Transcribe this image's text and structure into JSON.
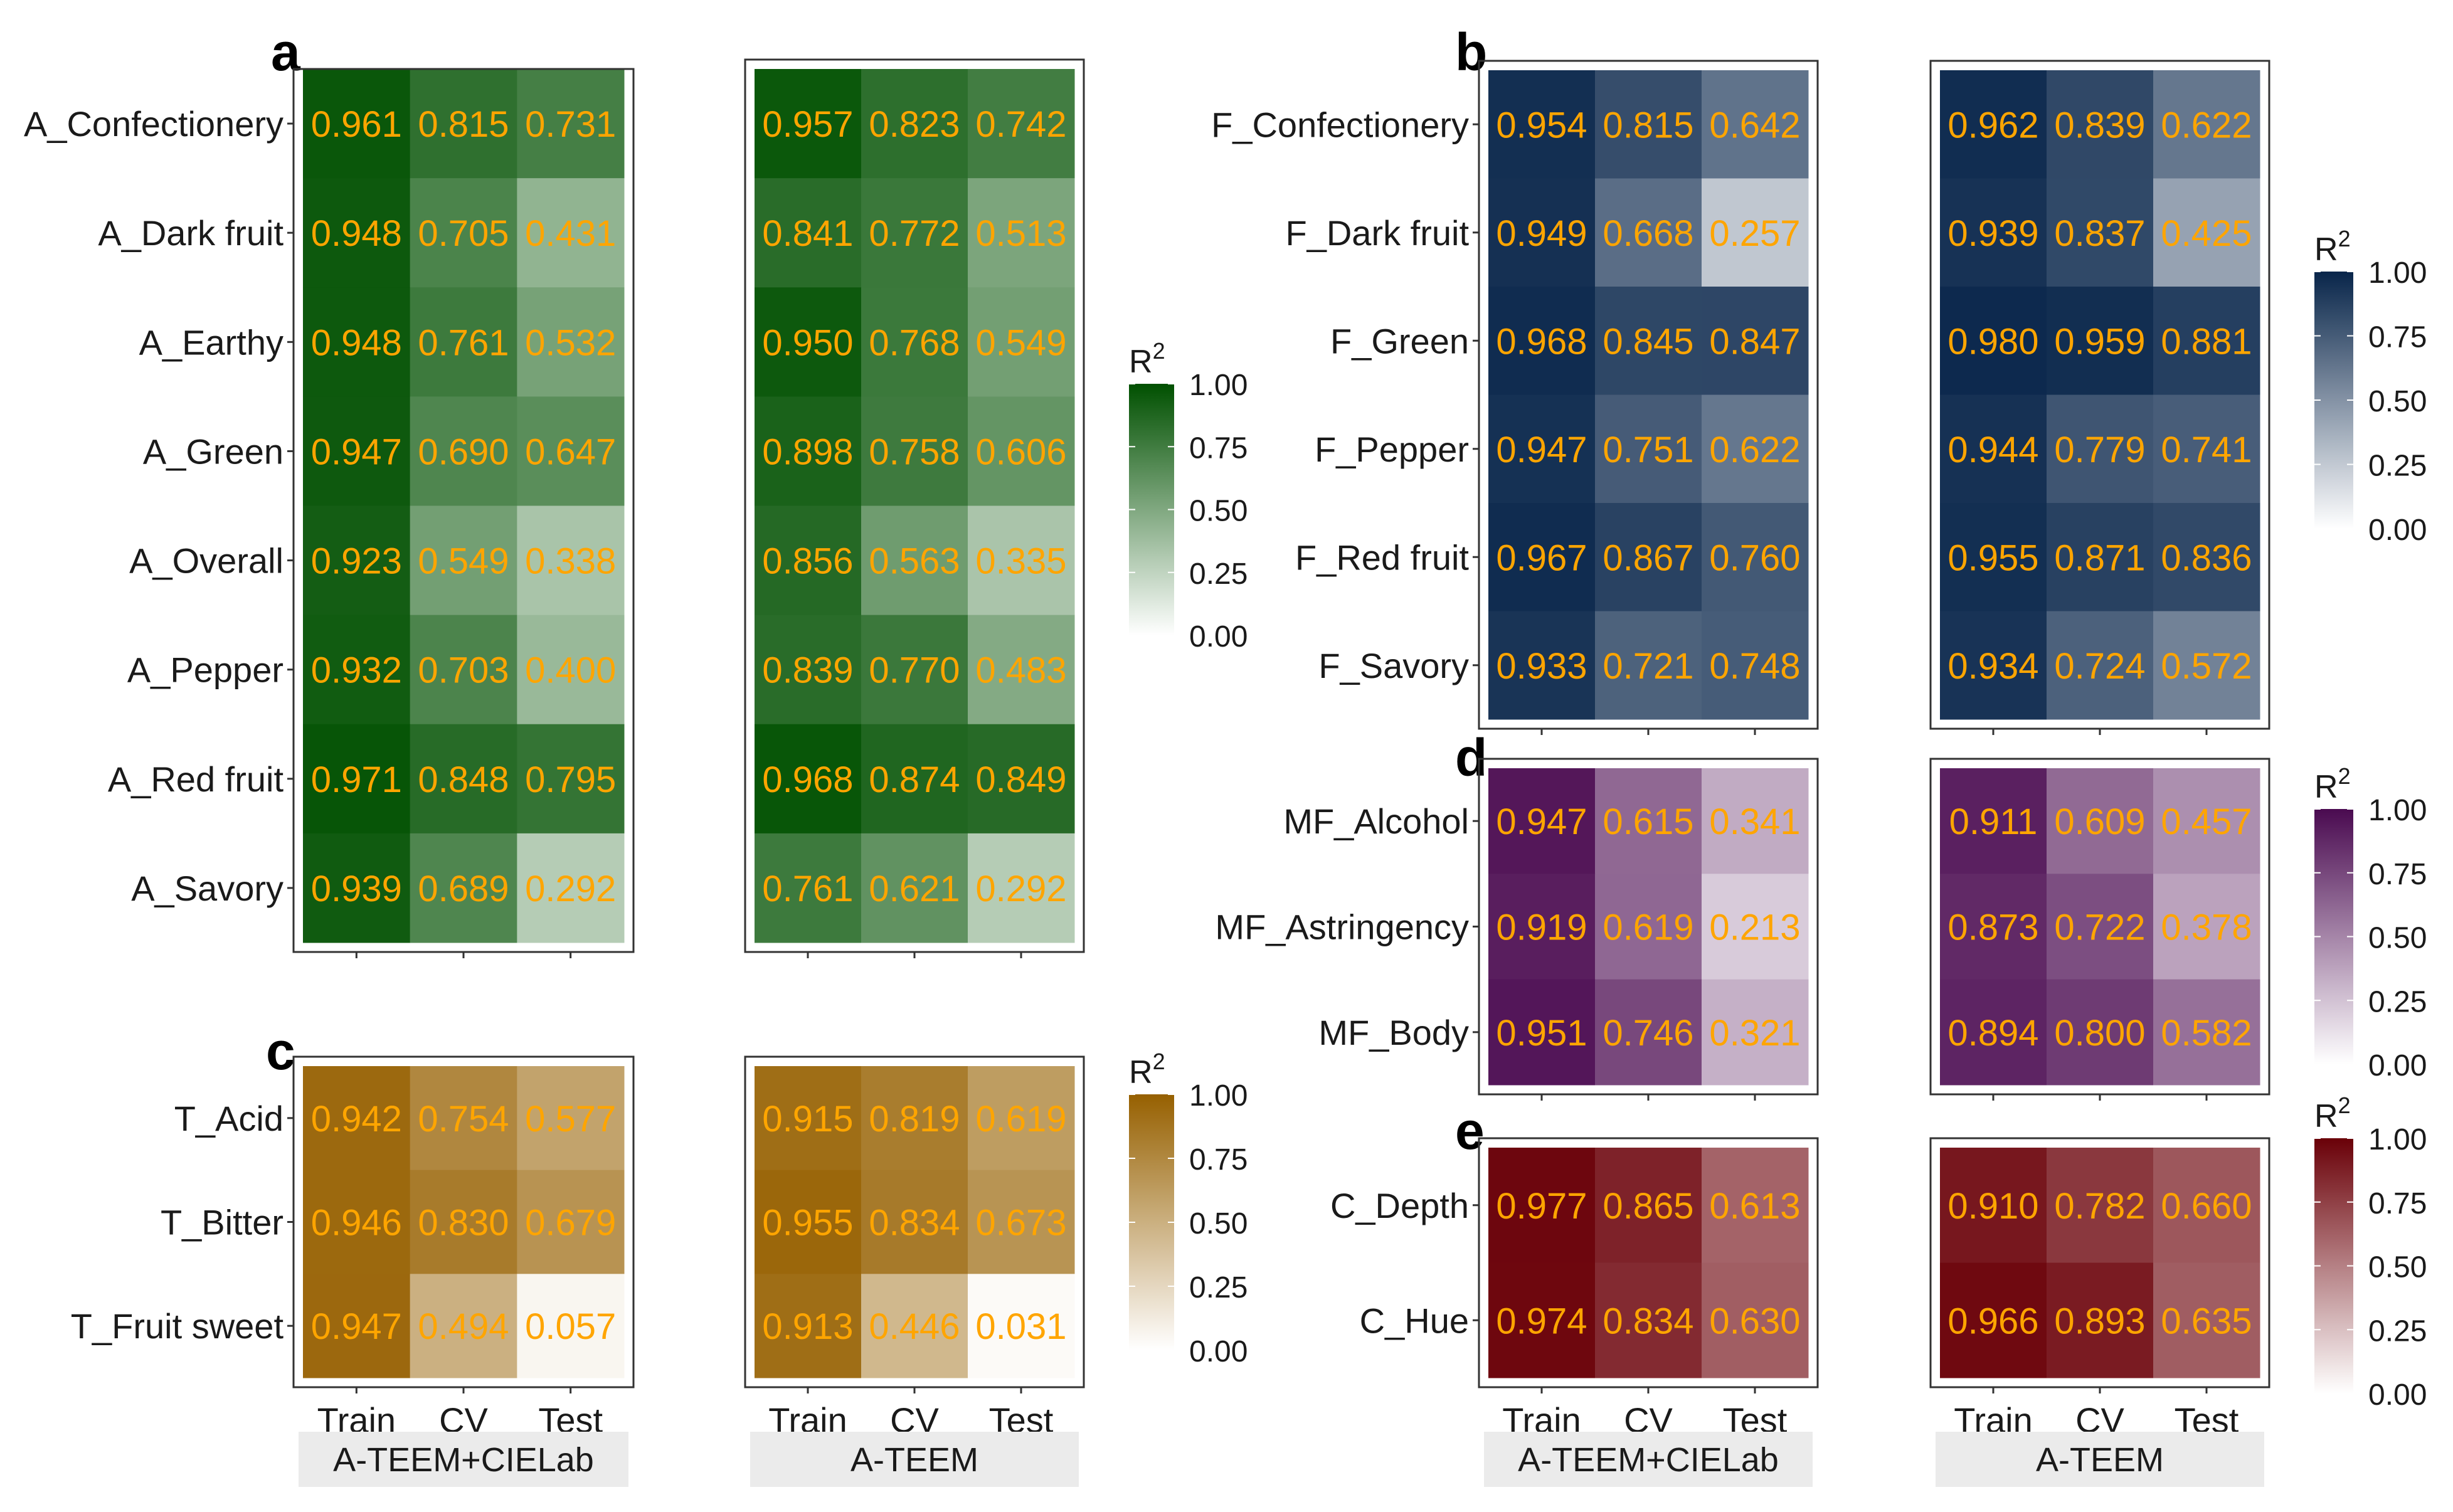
{
  "figure": {
    "value_label_color": "#FFA500",
    "legend_title": "R²",
    "facet_labels": [
      "A-TEEM+CIELab",
      "A-TEEM"
    ],
    "x_labels": [
      "Train",
      "CV",
      "Test"
    ]
  },
  "chart_data": [
    {
      "panel": "a",
      "type": "heatmap",
      "color": "#005000",
      "rows": [
        "A_Confectionery",
        "A_Dark fruit",
        "A_Earthy",
        "A_Green",
        "A_Overall",
        "A_Pepper",
        "A_Red fruit",
        "A_Savory"
      ],
      "columns": [
        "Train",
        "CV",
        "Test"
      ],
      "series": [
        {
          "name": "A-TEEM+CIELab",
          "values": [
            [
              0.961,
              0.815,
              0.731
            ],
            [
              0.948,
              0.705,
              0.431
            ],
            [
              0.948,
              0.761,
              0.532
            ],
            [
              0.947,
              0.69,
              0.647
            ],
            [
              0.923,
              0.549,
              0.338
            ],
            [
              0.932,
              0.703,
              0.4
            ],
            [
              0.971,
              0.848,
              0.795
            ],
            [
              0.939,
              0.689,
              0.292
            ]
          ],
          "labels": [
            [
              "0.961",
              "0.815",
              "0.731"
            ],
            [
              "0.948",
              "0.705",
              "0.431"
            ],
            [
              "0.948",
              "0.761",
              "0.532"
            ],
            [
              "0.947",
              "0.690",
              "0.647"
            ],
            [
              "0.923",
              "0.549",
              "0.338"
            ],
            [
              "0.932",
              "0.703",
              "0.400"
            ],
            [
              "0.971",
              "0.848",
              "0.795"
            ],
            [
              "0.939",
              "0.689",
              "0.292"
            ]
          ]
        },
        {
          "name": "A-TEEM",
          "values": [
            [
              0.957,
              0.823,
              0.742
            ],
            [
              0.841,
              0.772,
              0.513
            ],
            [
              0.95,
              0.768,
              0.549
            ],
            [
              0.898,
              0.758,
              0.606
            ],
            [
              0.856,
              0.563,
              0.335
            ],
            [
              0.839,
              0.77,
              0.483
            ],
            [
              0.968,
              0.874,
              0.849
            ],
            [
              0.761,
              0.621,
              0.292
            ]
          ],
          "labels": [
            [
              "0.957",
              "0.823",
              "0.742"
            ],
            [
              "0.841",
              "0.772",
              "0.513"
            ],
            [
              "0.950",
              "0.768",
              "0.549"
            ],
            [
              "0.898",
              "0.758",
              "0.606"
            ],
            [
              "0.856",
              "0.563",
              "0.335"
            ],
            [
              "0.839",
              "0.770",
              "0.483"
            ],
            [
              "0.968",
              "0.874",
              "0.849"
            ],
            [
              "0.761",
              "0.621",
              "0.292"
            ]
          ]
        }
      ],
      "legend": {
        "title": "R²",
        "ticks": [
          "1.00",
          "0.75",
          "0.50",
          "0.25",
          "0.00"
        ],
        "range": [
          0,
          1
        ]
      }
    },
    {
      "panel": "b",
      "type": "heatmap",
      "color": "#08254A",
      "rows": [
        "F_Confectionery",
        "F_Dark fruit",
        "F_Green",
        "F_Pepper",
        "F_Red fruit",
        "F_Savory"
      ],
      "columns": [
        "Train",
        "CV",
        "Test"
      ],
      "series": [
        {
          "name": "A-TEEM+CIELab",
          "values": [
            [
              0.954,
              0.815,
              0.642
            ],
            [
              0.949,
              0.668,
              0.257
            ],
            [
              0.968,
              0.845,
              0.847
            ],
            [
              0.947,
              0.751,
              0.622
            ],
            [
              0.967,
              0.867,
              0.76
            ],
            [
              0.933,
              0.721,
              0.748
            ]
          ],
          "labels": [
            [
              "0.954",
              "0.815",
              "0.642"
            ],
            [
              "0.949",
              "0.668",
              "0.257"
            ],
            [
              "0.968",
              "0.845",
              "0.847"
            ],
            [
              "0.947",
              "0.751",
              "0.622"
            ],
            [
              "0.967",
              "0.867",
              "0.760"
            ],
            [
              "0.933",
              "0.721",
              "0.748"
            ]
          ]
        },
        {
          "name": "A-TEEM",
          "values": [
            [
              0.962,
              0.839,
              0.622
            ],
            [
              0.939,
              0.837,
              0.425
            ],
            [
              0.98,
              0.959,
              0.881
            ],
            [
              0.944,
              0.779,
              0.741
            ],
            [
              0.955,
              0.871,
              0.836
            ],
            [
              0.934,
              0.724,
              0.572
            ]
          ],
          "labels": [
            [
              "0.962",
              "0.839",
              "0.622"
            ],
            [
              "0.939",
              "0.837",
              "0.425"
            ],
            [
              "0.980",
              "0.959",
              "0.881"
            ],
            [
              "0.944",
              "0.779",
              "0.741"
            ],
            [
              "0.955",
              "0.871",
              "0.836"
            ],
            [
              "0.934",
              "0.724",
              "0.572"
            ]
          ]
        }
      ],
      "legend": {
        "title": "R²",
        "ticks": [
          "1.00",
          "0.75",
          "0.50",
          "0.25",
          "0.00"
        ],
        "range": [
          0,
          1
        ]
      }
    },
    {
      "panel": "c",
      "type": "heatmap",
      "color": "#966000",
      "rows": [
        "T_Acid",
        "T_Bitter",
        "T_Fruit sweet"
      ],
      "columns": [
        "Train",
        "CV",
        "Test"
      ],
      "series": [
        {
          "name": "A-TEEM+CIELab",
          "values": [
            [
              0.942,
              0.754,
              0.577
            ],
            [
              0.946,
              0.83,
              0.679
            ],
            [
              0.947,
              0.494,
              0.057
            ]
          ],
          "labels": [
            [
              "0.942",
              "0.754",
              "0.577"
            ],
            [
              "0.946",
              "0.830",
              "0.679"
            ],
            [
              "0.947",
              "0.494",
              "0.057"
            ]
          ]
        },
        {
          "name": "A-TEEM",
          "values": [
            [
              0.915,
              0.819,
              0.619
            ],
            [
              0.955,
              0.834,
              0.673
            ],
            [
              0.913,
              0.446,
              0.031
            ]
          ],
          "labels": [
            [
              "0.915",
              "0.819",
              "0.619"
            ],
            [
              "0.955",
              "0.834",
              "0.673"
            ],
            [
              "0.913",
              "0.446",
              "0.031"
            ]
          ]
        }
      ],
      "legend": {
        "title": "R²",
        "ticks": [
          "1.00",
          "0.75",
          "0.50",
          "0.25",
          "0.00"
        ],
        "range": [
          0,
          1
        ]
      }
    },
    {
      "panel": "d",
      "type": "heatmap",
      "color": "#4A0A50",
      "rows": [
        "MF_Alcohol",
        "MF_Astringency",
        "MF_Body"
      ],
      "columns": [
        "Train",
        "CV",
        "Test"
      ],
      "series": [
        {
          "name": "A-TEEM+CIELab",
          "values": [
            [
              0.947,
              0.615,
              0.341
            ],
            [
              0.919,
              0.619,
              0.213
            ],
            [
              0.951,
              0.746,
              0.321
            ]
          ],
          "labels": [
            [
              "0.947",
              "0.615",
              "0.341"
            ],
            [
              "0.919",
              "0.619",
              "0.213"
            ],
            [
              "0.951",
              "0.746",
              "0.321"
            ]
          ]
        },
        {
          "name": "A-TEEM",
          "values": [
            [
              0.911,
              0.609,
              0.457
            ],
            [
              0.873,
              0.722,
              0.378
            ],
            [
              0.894,
              0.8,
              0.582
            ]
          ],
          "labels": [
            [
              "0.911",
              "0.609",
              "0.457"
            ],
            [
              "0.873",
              "0.722",
              "0.378"
            ],
            [
              "0.894",
              "0.800",
              "0.582"
            ]
          ]
        }
      ],
      "legend": {
        "title": "R²",
        "ticks": [
          "1.00",
          "0.75",
          "0.50",
          "0.25",
          "0.00"
        ],
        "range": [
          0,
          1
        ]
      }
    },
    {
      "panel": "e",
      "type": "heatmap",
      "color": "#6A0008",
      "rows": [
        "C_Depth",
        "C_Hue"
      ],
      "columns": [
        "Train",
        "CV",
        "Test"
      ],
      "series": [
        {
          "name": "A-TEEM+CIELab",
          "values": [
            [
              0.977,
              0.865,
              0.613
            ],
            [
              0.974,
              0.834,
              0.63
            ]
          ],
          "labels": [
            [
              "0.977",
              "0.865",
              "0.613"
            ],
            [
              "0.974",
              "0.834",
              "0.630"
            ]
          ]
        },
        {
          "name": "A-TEEM",
          "values": [
            [
              0.91,
              0.782,
              0.66
            ],
            [
              0.966,
              0.893,
              0.635
            ]
          ],
          "labels": [
            [
              "0.910",
              "0.782",
              "0.660"
            ],
            [
              "0.966",
              "0.893",
              "0.635"
            ]
          ]
        }
      ],
      "legend": {
        "title": "R²",
        "ticks": [
          "1.00",
          "0.75",
          "0.50",
          "0.25",
          "0.00"
        ],
        "range": [
          0,
          1
        ]
      }
    }
  ]
}
